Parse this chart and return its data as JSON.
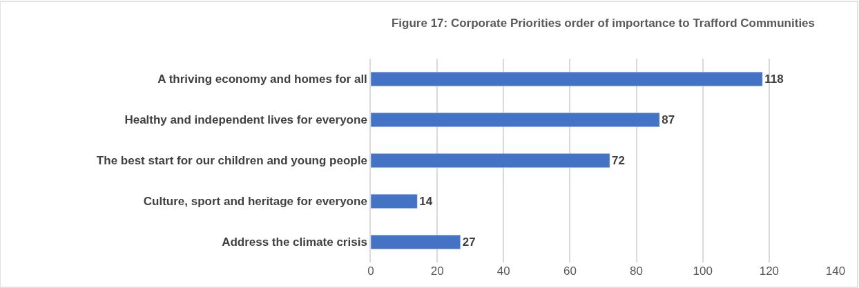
{
  "chart_data": {
    "type": "bar",
    "orientation": "horizontal",
    "title": "Figure 17: Corporate Priorities order of importance to Trafford Communities",
    "categories": [
      "A thriving economy and homes for all",
      "Healthy and independent lives for everyone",
      "The best start for our children and young people",
      "Culture, sport and heritage for everyone",
      "Address the climate crisis"
    ],
    "values": [
      118,
      87,
      72,
      14,
      27
    ],
    "color": "#4472c4",
    "data_labels": true,
    "xlim": [
      0,
      140
    ],
    "xticks": [
      0,
      20,
      40,
      60,
      80,
      100,
      120,
      140
    ],
    "grid": "x"
  }
}
